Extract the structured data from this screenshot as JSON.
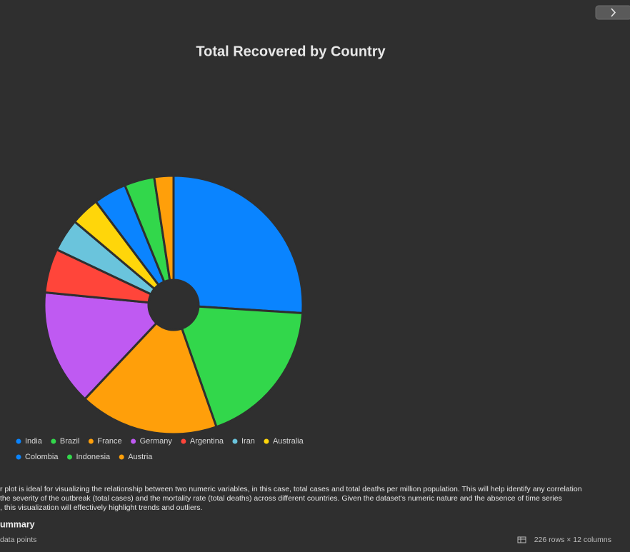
{
  "chart_data": {
    "type": "pie",
    "title": "Total Recovered by Country",
    "categories": [
      "India",
      "Brazil",
      "France",
      "Germany",
      "Argentina",
      "Iran",
      "Australia",
      "Colombia",
      "Indonesia",
      "Austria"
    ],
    "values": [
      26,
      18.6,
      17.4,
      14.5,
      5.5,
      4.1,
      3.6,
      4.1,
      3.75,
      2.4
    ],
    "colors": [
      "#0a84ff",
      "#32d74b",
      "#ff9f0a",
      "#bf5af2",
      "#ff453a",
      "#6ac4dc",
      "#ffd60a",
      "#0a84ff",
      "#32d74b",
      "#ff9f0a"
    ]
  },
  "description": [
    "r plot is ideal for visualizing the relationship between two numeric variables, in this case, total cases and total deaths per million population. This will help identify any correlation",
    " the severity of the outbreak (total cases) and the mortality rate (total deaths) across different countries. Given the dataset's numeric nature and the absence of time series",
    ", this visualization will effectively highlight trends and outliers."
  ],
  "summary_heading": "ummary",
  "data_points": "data points",
  "shape": "226 rows × 12 columns"
}
